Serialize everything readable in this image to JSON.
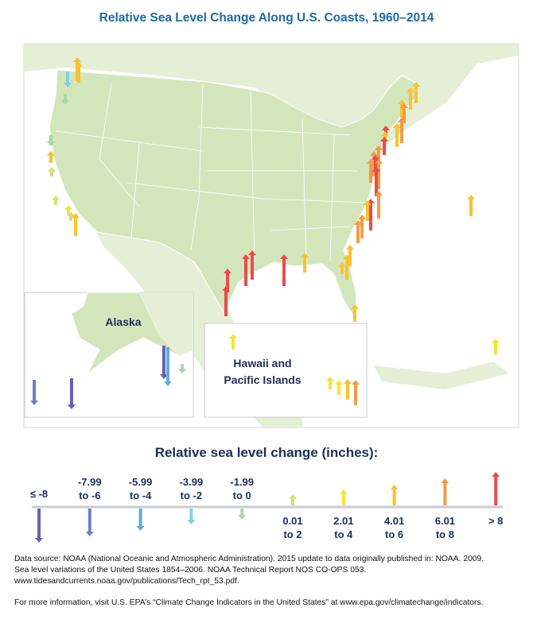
{
  "title": "Relative Sea Level Change Along U.S. Coasts, 1960–2014",
  "insets": {
    "alaska": "Alaska",
    "hawaii_line1": "Hawaii and",
    "hawaii_line2": "Pacific Islands"
  },
  "legend": {
    "title": "Relative sea level change (inches):",
    "categories": [
      {
        "l1": "≤ -8",
        "l2": "",
        "color": "#6a5fae",
        "direction": "down"
      },
      {
        "l1": "-7.99",
        "l2": "to -6",
        "color": "#6f80c2",
        "direction": "down"
      },
      {
        "l1": "-5.99",
        "l2": "to -4",
        "color": "#63a9dd",
        "direction": "down"
      },
      {
        "l1": "-3.99",
        "l2": "to -2",
        "color": "#80d0e0",
        "direction": "down"
      },
      {
        "l1": "-1.99",
        "l2": "to 0",
        "color": "#a9d8a9",
        "direction": "down"
      },
      {
        "l1": "0.01",
        "l2": "to 2",
        "color": "#d3e07a",
        "direction": "up"
      },
      {
        "l1": "2.01",
        "l2": "to 4",
        "color": "#f4e532",
        "direction": "up"
      },
      {
        "l1": "4.01",
        "l2": "to 6",
        "color": "#fbc22f",
        "direction": "up"
      },
      {
        "l1": "6.01",
        "l2": "to 8",
        "color": "#f39a46",
        "direction": "up"
      },
      {
        "l1": "> 8",
        "l2": "",
        "color": "#ec4a4e",
        "direction": "up"
      }
    ]
  },
  "footnote": {
    "line1": "Data source: NOAA (National Oceanic and Atmospheric Administration). 2015 update to data originally published in: NOAA. 2009.",
    "line2": "Sea level variations of the United States 1854–2006. NOAA Technical Report NOS CO-OPS 053.",
    "line3": "www.tidesandcurrents.noaa.gov/publications/Tech_rpt_53.pdf.",
    "more": "For more information, visit U.S. EPA’s “Climate Change Indicators in the United States” at www.epa.gov/climatechange/indicators."
  }
}
